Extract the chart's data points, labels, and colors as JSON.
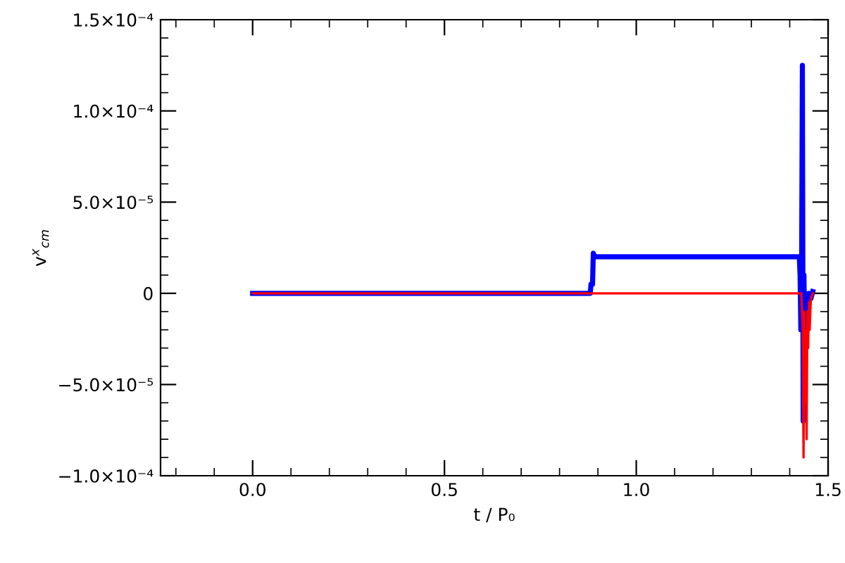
{
  "chart_data": {
    "type": "line",
    "xlabel": "t / P₀",
    "ylabel": "v$^{x}$$_{cm}$",
    "xlim": [
      -0.24,
      1.5
    ],
    "xticks": [
      {
        "value": 0,
        "label": "0.0"
      },
      {
        "value": 0.5,
        "label": "0.5"
      },
      {
        "value": 1,
        "label": "1.0"
      },
      {
        "value": 1.5,
        "label": "1.5"
      }
    ],
    "ylim": [
      -0.0001,
      0.00015
    ],
    "yticks": [
      {
        "value": -0.0001,
        "label": "−1.0×10⁻⁴"
      },
      {
        "value": -5e-05,
        "label": "−5.0×10⁻⁵"
      },
      {
        "value": 0,
        "label": "0"
      },
      {
        "value": 5e-05,
        "label": "5.0×10⁻⁵"
      },
      {
        "value": 0.0001,
        "label": "1.0×10⁻⁴"
      },
      {
        "value": 0.00015,
        "label": "1.5×10⁻⁴"
      }
    ],
    "grid": false,
    "legend": false,
    "marker": "none",
    "line_style": "solid",
    "series": [
      {
        "color": "#0000ff",
        "x": [
          0,
          0.88,
          0.882,
          0.886,
          0.888,
          0.892,
          1.425,
          1.427,
          1.429,
          1.431,
          1.433,
          1.435,
          1.437,
          1.439,
          1.441,
          1.445,
          1.45,
          1.455,
          1.46
        ],
        "values": [
          0,
          0,
          5e-06,
          5e-06,
          2.2e-05,
          2e-05,
          2e-05,
          1e-05,
          -2e-05,
          1.3e-05,
          0.000125,
          -7e-05,
          1e-05,
          -2e-05,
          0,
          -1e-05,
          0,
          -3e-06,
          1e-06
        ]
      },
      {
        "color": "#ff0000",
        "x": [
          0,
          0.88,
          1.43,
          1.434,
          1.436,
          1.438,
          1.44,
          1.442,
          1.444,
          1.446,
          1.448,
          1.45,
          1.452,
          1.455,
          1.46
        ],
        "values": [
          0,
          0,
          0,
          -2e-05,
          -9e-05,
          -1e-05,
          -6e-05,
          -2e-05,
          -8e-05,
          -1e-05,
          -3e-05,
          -5e-06,
          -2e-05,
          -3e-06,
          0
        ]
      }
    ]
  }
}
